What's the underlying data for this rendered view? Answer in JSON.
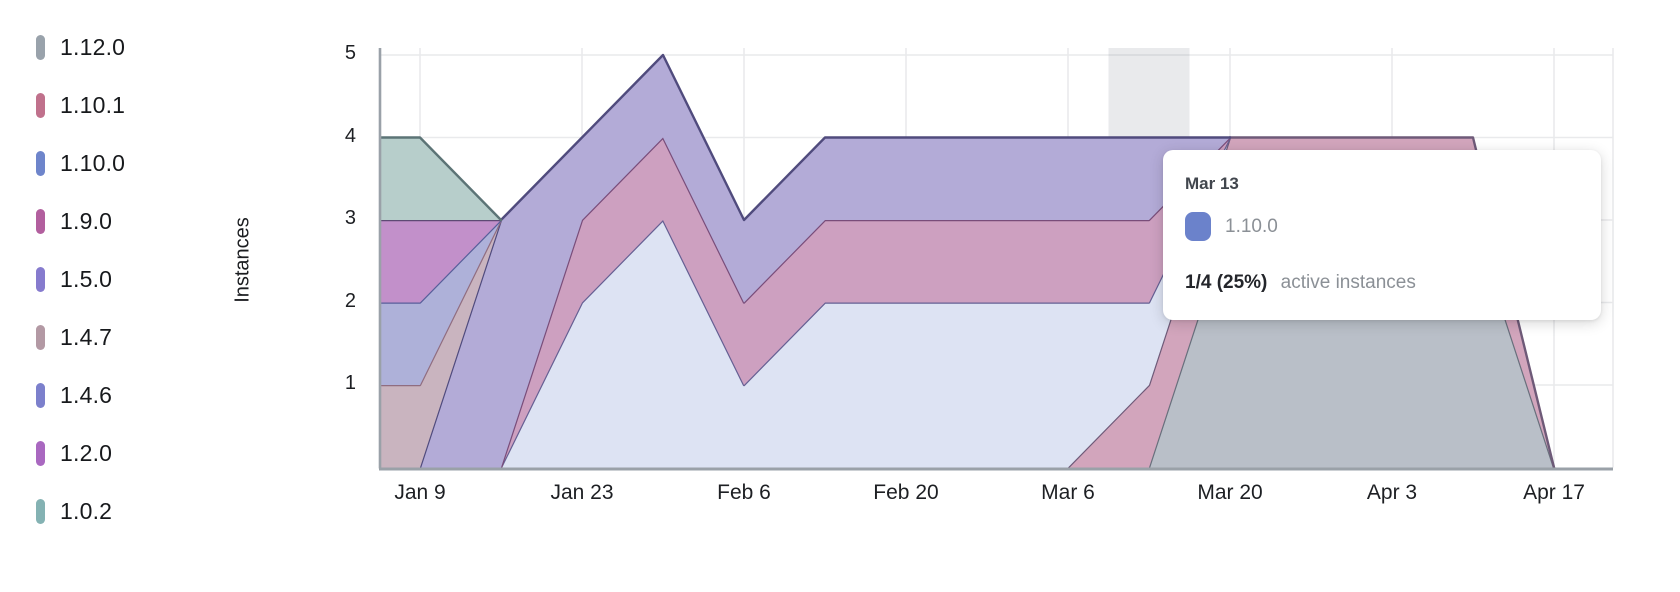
{
  "legend": {
    "items": [
      {
        "label": "1.12.0",
        "color": "#99a2ab"
      },
      {
        "label": "1.10.1",
        "color": "#c0718c"
      },
      {
        "label": "1.10.0",
        "color": "#6e85cb"
      },
      {
        "label": "1.9.0",
        "color": "#b25f9e"
      },
      {
        "label": "1.5.0",
        "color": "#867bce"
      },
      {
        "label": "1.4.7",
        "color": "#b399a4"
      },
      {
        "label": "1.4.6",
        "color": "#7c80cc"
      },
      {
        "label": "1.2.0",
        "color": "#a968c0"
      },
      {
        "label": "1.0.2",
        "color": "#84b2b3"
      }
    ]
  },
  "y_axis": {
    "title": "Instances",
    "ticks": [
      {
        "label": "5",
        "value": 5
      },
      {
        "label": "4",
        "value": 4
      },
      {
        "label": "3",
        "value": 3
      },
      {
        "label": "2",
        "value": 2
      },
      {
        "label": "1",
        "value": 1
      }
    ]
  },
  "x_axis": {
    "ticks": [
      {
        "label": "Jan 9",
        "x_index": 0
      },
      {
        "label": "Jan 23",
        "x_index": 2
      },
      {
        "label": "Feb 6",
        "x_index": 4
      },
      {
        "label": "Feb 20",
        "x_index": 6
      },
      {
        "label": "Mar 6",
        "x_index": 8
      },
      {
        "label": "Mar 20",
        "x_index": 10
      },
      {
        "label": "Apr 3",
        "x_index": 12
      },
      {
        "label": "Apr 17",
        "x_index": 14
      }
    ]
  },
  "tooltip": {
    "date": "Mar 13",
    "series": "1.10.0",
    "swatch_color": "#6b82cb",
    "value": "1/4 (25%)",
    "suffix": "active instances"
  },
  "chart_data": {
    "type": "area",
    "stacked": true,
    "title": "",
    "xlabel": "",
    "ylabel": "Instances",
    "ylim": [
      0,
      5
    ],
    "grid": true,
    "legend_position": "left",
    "x": [
      "Jan 9",
      "Jan 16",
      "Jan 23",
      "Jan 30",
      "Feb 6",
      "Feb 13",
      "Feb 20",
      "Feb 27",
      "Mar 6",
      "Mar 13",
      "Mar 20",
      "Mar 27",
      "Apr 3",
      "Apr 10",
      "Apr 17"
    ],
    "x_tick_step": 2,
    "hover_column": "Mar 13",
    "hover_column_index": 9,
    "hover_band_color": "rgba(110,117,128,0.15)",
    "grid_color": "#e9eaec",
    "axis_color": "#9aa1a8",
    "series": [
      {
        "name": "1.12.0",
        "values": [
          0,
          0,
          0,
          0,
          0,
          0,
          0,
          0,
          0,
          0,
          3,
          3,
          3,
          3,
          0
        ],
        "fill": "#b9bfc8",
        "stroke": "#686f7c",
        "stroke_range": [
          10,
          15
        ]
      },
      {
        "name": "1.10.1",
        "values": [
          0,
          0,
          0,
          0,
          0,
          0,
          0,
          0,
          0,
          1,
          1,
          1,
          1,
          1,
          0
        ],
        "fill": "#d2a5bc",
        "stroke": "#6e5a78",
        "stroke_range": [
          9,
          15
        ]
      },
      {
        "name": "1.10.0",
        "values": [
          0,
          0,
          2,
          3,
          1,
          2,
          2,
          2,
          2,
          1,
          0,
          0,
          0,
          0,
          0
        ],
        "fill": "#dde3f3",
        "stroke": "#655f93",
        "stroke_range": [
          2,
          11
        ]
      },
      {
        "name": "1.9.0",
        "values": [
          0,
          0,
          1,
          1,
          1,
          1,
          1,
          1,
          1,
          1,
          0,
          0,
          0,
          0,
          0
        ],
        "fill": "#cda0c0",
        "stroke": "#794d7a",
        "stroke_range": [
          2,
          11
        ]
      },
      {
        "name": "1.5.0",
        "values": [
          0,
          3,
          1,
          1,
          1,
          1,
          1,
          1,
          1,
          1,
          0,
          0,
          0,
          0,
          0
        ],
        "fill": "#b3abd7",
        "stroke": "#504b7d",
        "stroke_range": [
          1,
          11
        ]
      },
      {
        "name": "1.4.7",
        "values": [
          1,
          0,
          0,
          0,
          0,
          0,
          0,
          0,
          0,
          0,
          0,
          0,
          0,
          0,
          0
        ],
        "fill": "#c9b4bf",
        "stroke": "#906d80",
        "stroke_range": [
          0,
          2
        ]
      },
      {
        "name": "1.4.6",
        "values": [
          1,
          0,
          0,
          0,
          0,
          0,
          0,
          0,
          0,
          0,
          0,
          0,
          0,
          0,
          0
        ],
        "fill": "#aeb1d9",
        "stroke": "#585e9a",
        "stroke_range": [
          0,
          2
        ]
      },
      {
        "name": "1.2.0",
        "values": [
          1,
          0,
          0,
          0,
          0,
          0,
          0,
          0,
          0,
          0,
          0,
          0,
          0,
          0,
          0
        ],
        "fill": "#c290ca",
        "stroke": "#5e4a74",
        "stroke_range": [
          0,
          2
        ]
      },
      {
        "name": "1.0.2",
        "values": [
          1,
          0,
          0,
          0,
          0,
          0,
          0,
          0,
          0,
          0,
          0,
          0,
          0,
          0,
          0
        ],
        "fill": "#b7cecb",
        "stroke": "#5c7476",
        "stroke_range": [
          0,
          2
        ]
      }
    ]
  }
}
